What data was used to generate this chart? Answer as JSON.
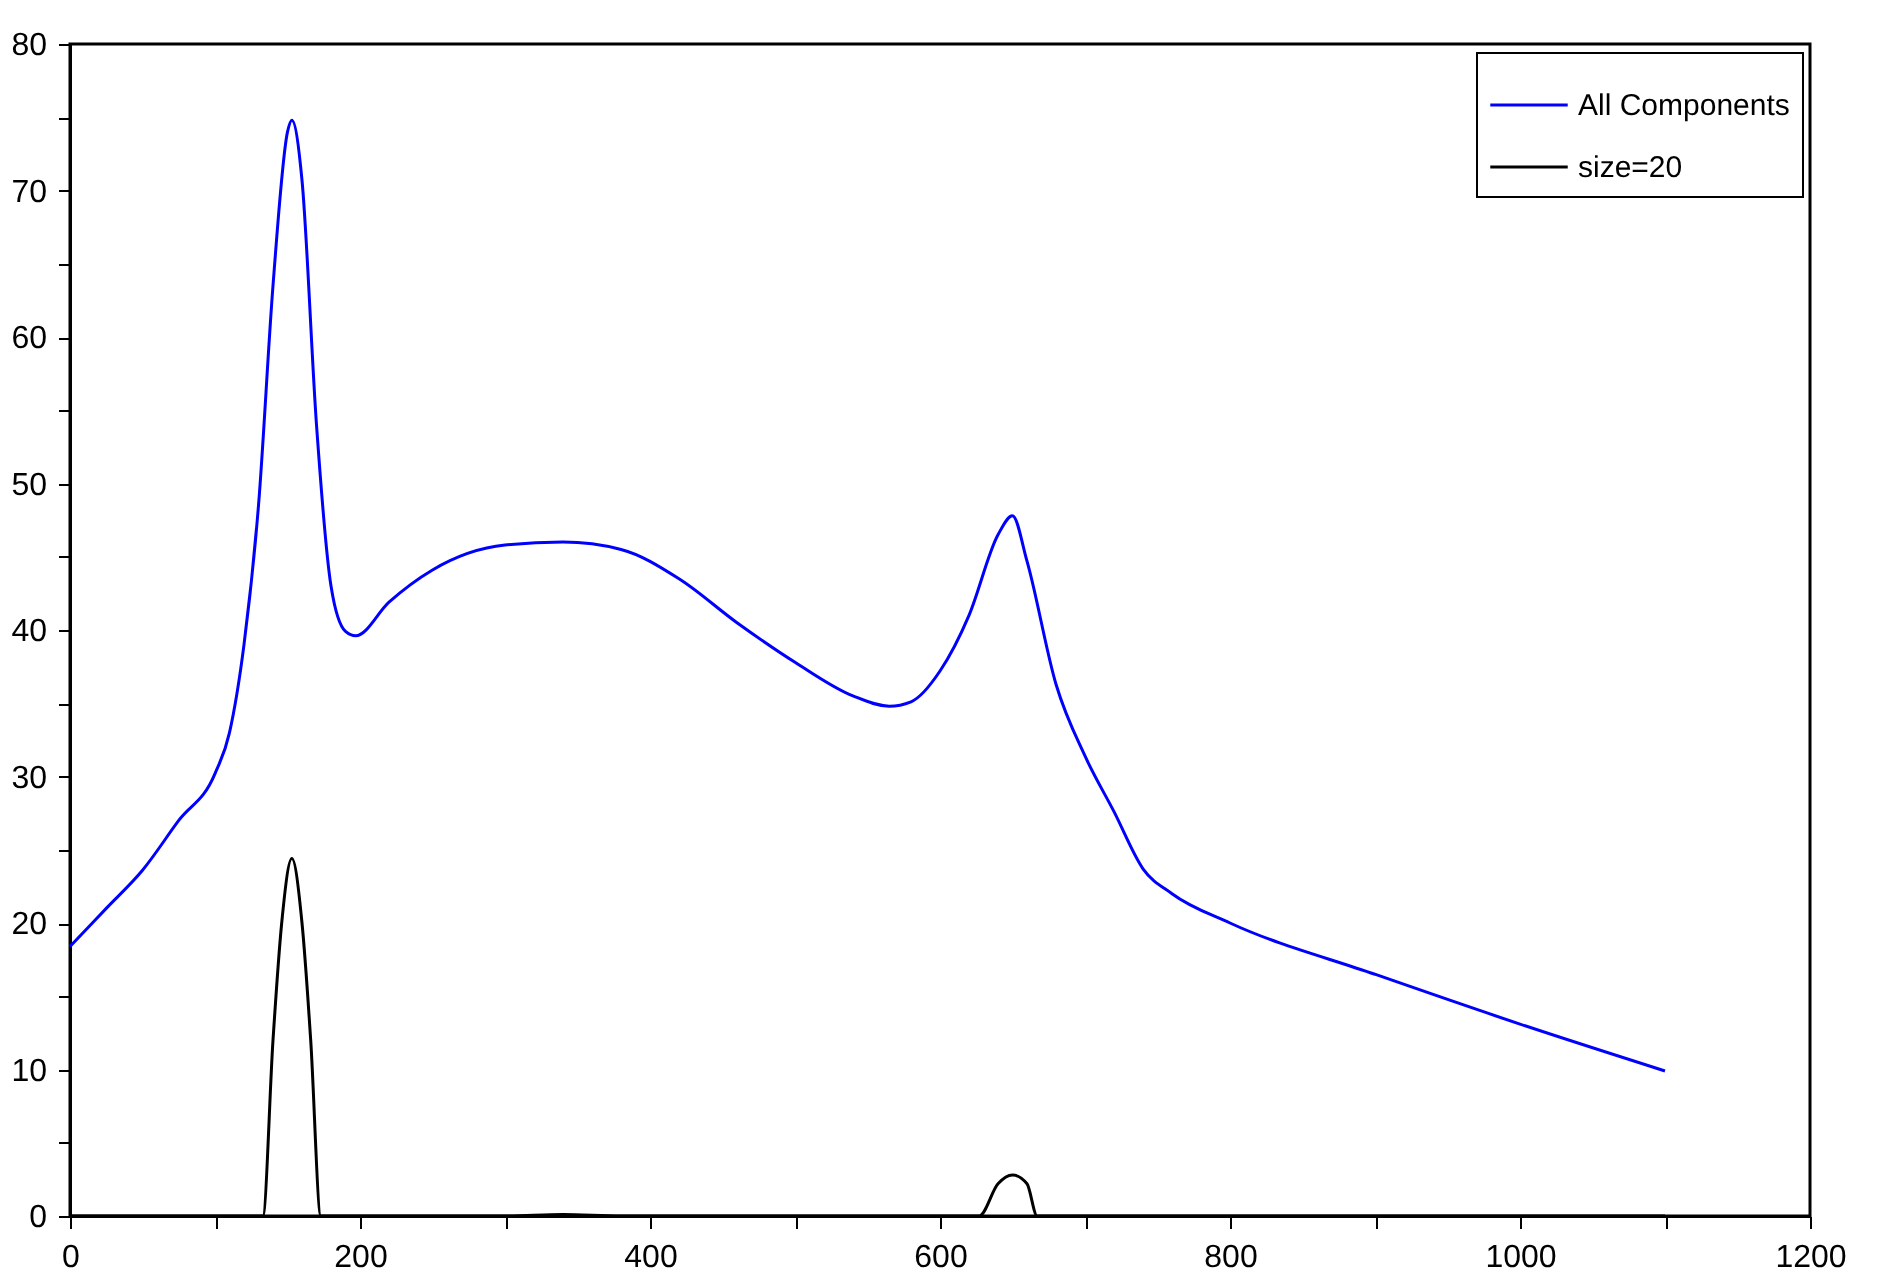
{
  "chart_data": {
    "type": "line",
    "xlim": [
      0,
      1200
    ],
    "ylim": [
      0,
      80
    ],
    "xticks": [
      0,
      {
        "value": 100,
        "label": null
      },
      200,
      {
        "value": 300,
        "label": null
      },
      400,
      {
        "value": 500,
        "label": null
      },
      600,
      {
        "value": 700,
        "label": null
      },
      800,
      {
        "value": 900,
        "label": null
      },
      1000,
      {
        "value": 1100,
        "label": null
      },
      1200
    ],
    "yticks": [
      0,
      {
        "value": 5,
        "label": null
      },
      10,
      {
        "value": 15,
        "label": null
      },
      20,
      {
        "value": 25,
        "label": null
      },
      30,
      {
        "value": 35,
        "label": null
      },
      40,
      {
        "value": 45,
        "label": null
      },
      50,
      {
        "value": 55,
        "label": null
      },
      60,
      {
        "value": 65,
        "label": null
      },
      70,
      {
        "value": 75,
        "label": null
      },
      80
    ],
    "grid": false,
    "legend": "top right",
    "marker": "none",
    "line_style": "solid",
    "series": [
      {
        "name": "All Components",
        "color": "#0000ff",
        "x": [
          0,
          25,
          50,
          75,
          100,
          110,
          120,
          130,
          140,
          150,
          153,
          160,
          170,
          180,
          190,
          197,
          220,
          250,
          300,
          340,
          380,
          420,
          460,
          500,
          540,
          565,
          580,
          600,
          620,
          640,
          650,
          660,
          680,
          700,
          720,
          740,
          760,
          800,
          900,
          1000,
          1100
        ],
        "values": [
          18.4,
          21,
          23.6,
          27,
          30.2,
          33,
          39,
          48.5,
          63.5,
          74,
          74.8,
          70.7,
          54,
          43,
          39.9,
          39.6,
          41.9,
          44.1,
          45.8,
          46,
          45.5,
          43.5,
          40.5,
          37.8,
          35.5,
          34.8,
          35.1,
          37.2,
          41,
          46.5,
          47.8,
          44.7,
          36.3,
          31.4,
          27.6,
          23.7,
          22,
          20,
          16.5,
          13.1,
          9.9
        ]
      },
      {
        "name": "size=20",
        "color": "#000000",
        "x": [
          0,
          133,
          140,
          146,
          153,
          160,
          166,
          173,
          300,
          340,
          380,
          627,
          640,
          650,
          660,
          667,
          1100
        ],
        "values": [
          0,
          0,
          12,
          20,
          24.4,
          20,
          12,
          0,
          0,
          0.1,
          0,
          0,
          2.2,
          2.8,
          2.2,
          0,
          0
        ]
      }
    ]
  }
}
